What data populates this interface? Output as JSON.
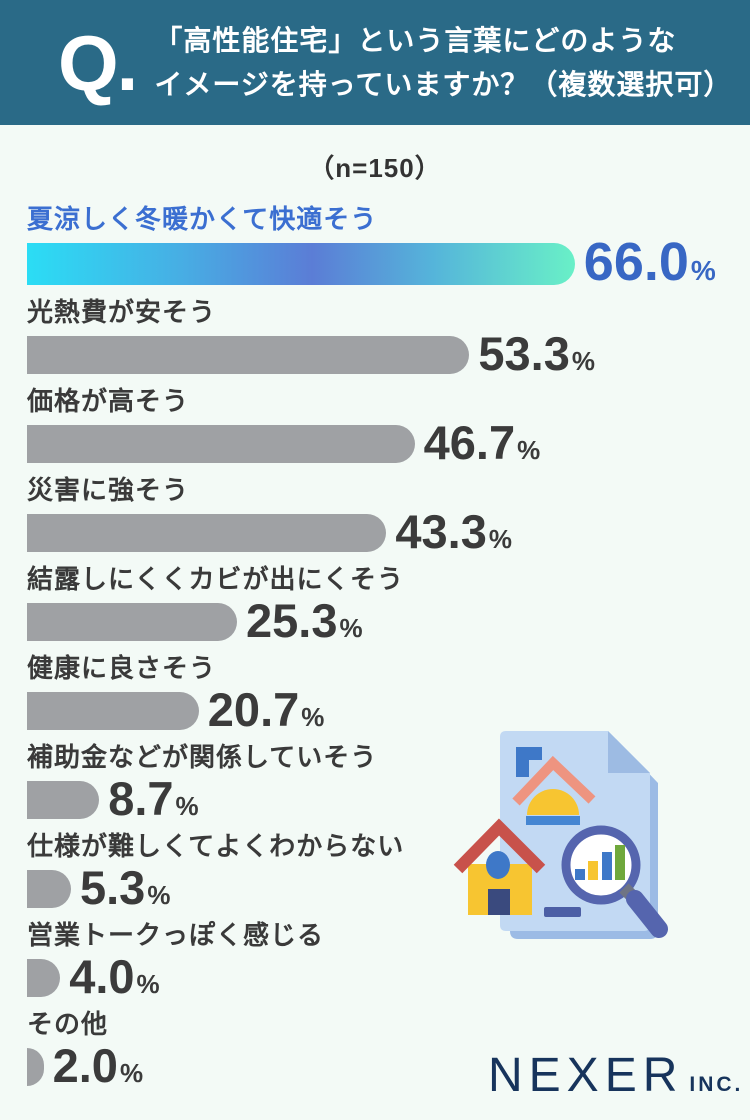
{
  "header": {
    "q_mark": "Q.",
    "question_line1": "「高性能住宅」という言葉にどのような",
    "question_line2": "イメージを持っていますか？（複数選択可）"
  },
  "sample_label": "（n=150）",
  "chart_data": {
    "type": "bar",
    "orientation": "horizontal",
    "title": "「高性能住宅」という言葉にどのようなイメージを持っていますか？（複数選択可）",
    "n": 150,
    "unit": "%",
    "categories": [
      "夏涼しく冬暖かくて快適そう",
      "光熱費が安そう",
      "価格が高そう",
      "災害に強そう",
      "結露しにくくカビが出にくそう",
      "健康に良さそう",
      "補助金などが関係していそう",
      "仕様が難しくてよくわからない",
      "営業トークっぽく感じる",
      "その他"
    ],
    "values": [
      66.0,
      53.3,
      46.7,
      43.3,
      25.3,
      20.7,
      8.7,
      5.3,
      4.0,
      2.0
    ],
    "highlight_index": 0,
    "xlim": [
      0,
      100
    ],
    "grid": false,
    "legend": false
  },
  "colors": {
    "header_bg": "#2A6A87",
    "page_bg": "#F3FAF6",
    "bar_gray": "#9FA1A4",
    "highlight_label": "#3B6FD1",
    "highlight_value": "#3867C4",
    "highlight_gradient": [
      "#2BDDF5",
      "#5B7DD6",
      "#69F0C7"
    ],
    "value_text": "#3B3B3B",
    "logo_navy": "#17345C"
  },
  "footer": {
    "brand": "NEXER",
    "brand_suffix": "INC."
  },
  "illustration": {
    "name": "house-document-magnifier-illustration"
  }
}
